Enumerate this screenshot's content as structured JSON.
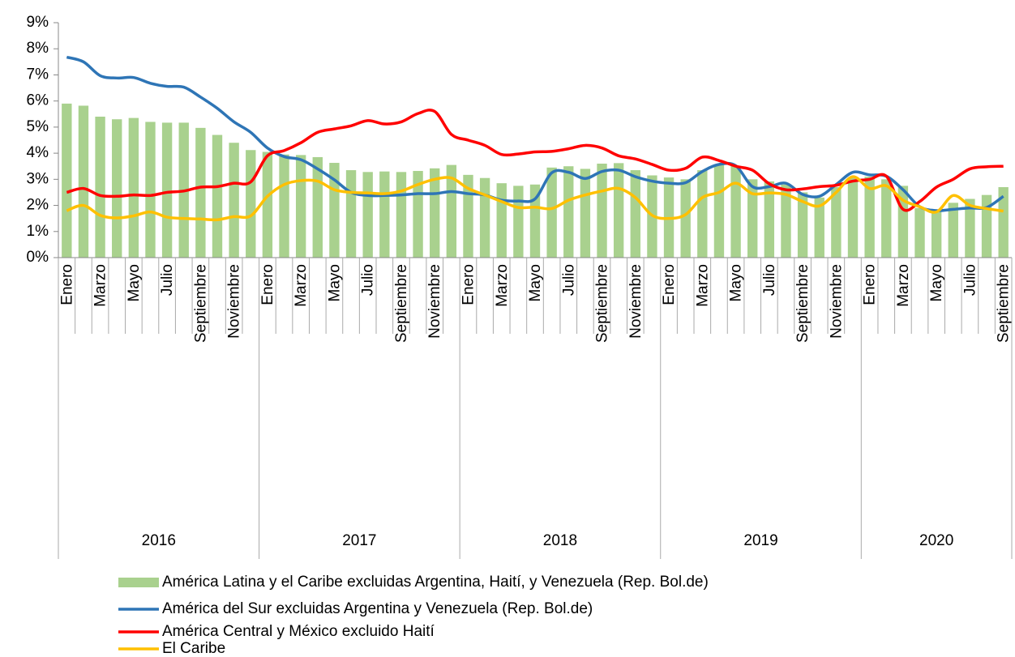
{
  "chart_data": {
    "type": "bar-line",
    "categories": [
      "Enero",
      null,
      "Marzo",
      null,
      "Mayo",
      null,
      "Julio",
      null,
      "Septiembre",
      null,
      "Noviembre",
      null,
      "Enero",
      null,
      "Marzo",
      null,
      "Mayo",
      null,
      "Julio",
      null,
      "Septiembre",
      null,
      "Noviembre",
      null,
      "Enero",
      null,
      "Marzo",
      null,
      "Mayo",
      null,
      "Julio",
      null,
      "Septiembre",
      null,
      "Noviembre",
      null,
      "Enero",
      null,
      "Marzo",
      null,
      "Mayo",
      null,
      "Julio",
      null,
      "Septiembre",
      null,
      "Noviembre",
      null,
      "Enero",
      null,
      "Marzo",
      null,
      "Mayo",
      null,
      "Julio",
      null,
      "Septiembre"
    ],
    "years": [
      "2016",
      "2017",
      "2018",
      "2019",
      "2020"
    ],
    "ylim": [
      0,
      9
    ],
    "yticks": [
      {
        "value": 0,
        "label": "0%"
      },
      {
        "value": 1,
        "label": "1%"
      },
      {
        "value": 2,
        "label": "2%"
      },
      {
        "value": 3,
        "label": "3%"
      },
      {
        "value": 4,
        "label": "4%"
      },
      {
        "value": 5,
        "label": "5%"
      },
      {
        "value": 6,
        "label": "6%"
      },
      {
        "value": 7,
        "label": "7%"
      },
      {
        "value": 8,
        "label": "8%"
      },
      {
        "value": 9,
        "label": "9%"
      }
    ],
    "series": [
      {
        "name": "América Latina y el Caribe excluidas Argentina, Haití, y Venezuela (Rep. Bol.de)",
        "type": "bar",
        "color": "#a9d18e",
        "values": [
          5.9,
          5.82,
          5.4,
          5.3,
          5.35,
          5.2,
          5.17,
          5.17,
          4.97,
          4.7,
          4.4,
          4.12,
          4.05,
          3.95,
          3.93,
          3.85,
          3.63,
          3.35,
          3.28,
          3.3,
          3.28,
          3.32,
          3.42,
          3.55,
          3.17,
          3.05,
          2.85,
          2.75,
          2.8,
          3.45,
          3.5,
          3.4,
          3.6,
          3.62,
          3.35,
          3.15,
          3.07,
          3.0,
          3.35,
          3.55,
          3.52,
          3.0,
          2.92,
          2.8,
          2.5,
          2.3,
          2.7,
          3.05,
          3.1,
          3.0,
          2.75,
          1.9,
          1.85,
          2.1,
          2.25,
          2.4,
          2.7
        ]
      },
      {
        "name": "América del Sur excluidas Argentina y Venezuela (Rep. Bol.de)",
        "type": "line",
        "color": "#2e75b6",
        "values": [
          7.68,
          7.5,
          6.97,
          6.88,
          6.9,
          6.68,
          6.56,
          6.53,
          6.15,
          5.72,
          5.2,
          4.8,
          4.2,
          3.87,
          3.75,
          3.4,
          2.98,
          2.5,
          2.38,
          2.38,
          2.4,
          2.45,
          2.45,
          2.53,
          2.45,
          2.4,
          2.2,
          2.17,
          2.25,
          3.25,
          3.27,
          3.03,
          3.3,
          3.35,
          3.1,
          2.93,
          2.85,
          2.87,
          3.3,
          3.57,
          3.52,
          2.72,
          2.72,
          2.85,
          2.42,
          2.35,
          2.8,
          3.27,
          3.17,
          3.12,
          2.6,
          1.95,
          1.8,
          1.85,
          1.9,
          1.92,
          2.35
        ]
      },
      {
        "name": "América Central y México excluido Haití",
        "type": "line",
        "color": "#ff0000",
        "values": [
          2.5,
          2.65,
          2.38,
          2.35,
          2.4,
          2.38,
          2.5,
          2.55,
          2.7,
          2.72,
          2.85,
          2.9,
          3.9,
          4.1,
          4.4,
          4.8,
          4.93,
          5.05,
          5.25,
          5.12,
          5.2,
          5.52,
          5.6,
          4.72,
          4.5,
          4.3,
          3.95,
          3.97,
          4.05,
          4.07,
          4.17,
          4.3,
          4.2,
          3.9,
          3.78,
          3.57,
          3.35,
          3.42,
          3.85,
          3.72,
          3.5,
          3.35,
          2.83,
          2.6,
          2.63,
          2.72,
          2.77,
          2.93,
          3.0,
          3.12,
          1.85,
          2.15,
          2.7,
          3.0,
          3.4,
          3.48,
          3.5
        ]
      },
      {
        "name": "El Caribe",
        "type": "line",
        "color": "#ffc000",
        "values": [
          1.8,
          2.0,
          1.62,
          1.52,
          1.6,
          1.75,
          1.55,
          1.5,
          1.48,
          1.45,
          1.57,
          1.6,
          2.35,
          2.8,
          2.95,
          2.93,
          2.6,
          2.5,
          2.48,
          2.45,
          2.55,
          2.8,
          3.0,
          3.05,
          2.65,
          2.4,
          2.15,
          1.92,
          1.93,
          1.88,
          2.2,
          2.4,
          2.55,
          2.65,
          2.3,
          1.62,
          1.5,
          1.65,
          2.3,
          2.5,
          2.85,
          2.45,
          2.48,
          2.42,
          2.15,
          1.98,
          2.5,
          3.1,
          2.65,
          2.75,
          2.2,
          1.95,
          1.75,
          2.38,
          2.0,
          1.88,
          1.78
        ]
      }
    ]
  }
}
